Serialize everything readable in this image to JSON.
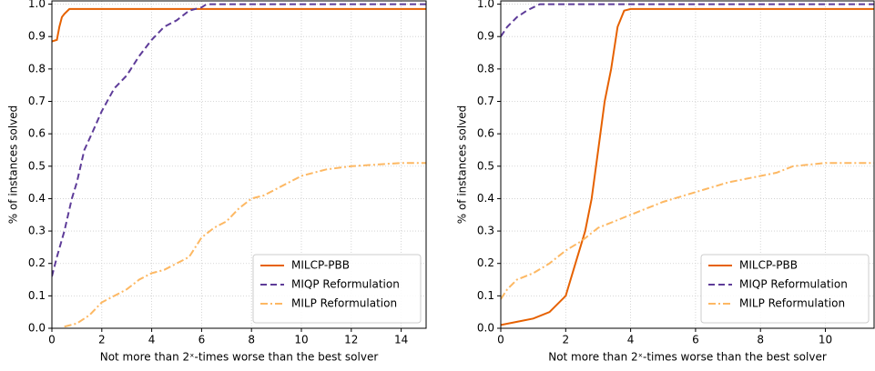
{
  "chart_data": [
    {
      "type": "line",
      "xlabel": "Not more than 2ˣ-times worse than the best solver",
      "ylabel": "% of instances solved",
      "xlim": [
        0,
        15
      ],
      "ylim": [
        0,
        1.01
      ],
      "xticks": [
        0,
        2,
        4,
        6,
        8,
        10,
        12,
        14
      ],
      "yticks": [
        {
          "value": 0,
          "label": "0.0"
        },
        0.1,
        0.2,
        0.3,
        0.4,
        0.5,
        0.6,
        0.7,
        0.8,
        0.9,
        {
          "value": 1,
          "label": "1.0"
        }
      ],
      "grid": true,
      "legend": "lower right",
      "series": [
        {
          "name": "MILCP-PBB",
          "color": "#e66101",
          "linestyle": "solid",
          "x": [
            0,
            0.2,
            0.3,
            0.4,
            0.5,
            0.7,
            15
          ],
          "values": [
            0.885,
            0.89,
            0.93,
            0.96,
            0.97,
            0.985,
            0.985
          ]
        },
        {
          "name": "MIQP Reformulation",
          "color": "#5e3c99",
          "linestyle": "dashed",
          "x": [
            0,
            0.2,
            0.5,
            0.8,
            1.0,
            1.3,
            1.6,
            2.0,
            2.5,
            3.0,
            3.5,
            4.0,
            4.5,
            5.0,
            5.5,
            6.0,
            6.2,
            15
          ],
          "values": [
            0.16,
            0.22,
            0.3,
            0.4,
            0.45,
            0.55,
            0.6,
            0.67,
            0.74,
            0.78,
            0.84,
            0.89,
            0.93,
            0.95,
            0.98,
            0.99,
            1.0,
            1.0
          ]
        },
        {
          "name": "MILP Reformulation",
          "color": "#fdb863",
          "linestyle": "dashdot",
          "x": [
            0.5,
            1,
            1.5,
            2,
            2.5,
            3,
            3.5,
            4,
            4.5,
            5,
            5.5,
            6,
            6.5,
            7,
            7.5,
            8,
            8.5,
            9,
            9.5,
            10,
            11,
            12,
            13,
            14,
            15
          ],
          "values": [
            0.005,
            0.015,
            0.04,
            0.08,
            0.1,
            0.12,
            0.15,
            0.17,
            0.18,
            0.2,
            0.22,
            0.28,
            0.31,
            0.33,
            0.37,
            0.4,
            0.41,
            0.43,
            0.45,
            0.47,
            0.49,
            0.5,
            0.505,
            0.51,
            0.51
          ]
        }
      ]
    },
    {
      "type": "line",
      "xlabel": "Not more than 2ˣ-times worse than the best solver",
      "ylabel": "% of instances solved",
      "xlim": [
        0,
        11.5
      ],
      "ylim": [
        0,
        1.01
      ],
      "xticks": [
        0,
        2,
        4,
        6,
        8,
        10
      ],
      "yticks": [
        {
          "value": 0,
          "label": "0.0"
        },
        0.1,
        0.2,
        0.3,
        0.4,
        0.5,
        0.6,
        0.7,
        0.8,
        0.9,
        {
          "value": 1,
          "label": "1.0"
        }
      ],
      "grid": true,
      "legend": "lower right",
      "series": [
        {
          "name": "MILCP-PBB",
          "color": "#e66101",
          "linestyle": "solid",
          "x": [
            0,
            0.5,
            1,
            1.5,
            2,
            2.3,
            2.6,
            2.8,
            3.0,
            3.2,
            3.4,
            3.6,
            3.8,
            4.0,
            11.5
          ],
          "values": [
            0.01,
            0.02,
            0.03,
            0.05,
            0.1,
            0.2,
            0.3,
            0.4,
            0.55,
            0.7,
            0.8,
            0.93,
            0.98,
            0.985,
            0.985
          ]
        },
        {
          "name": "MIQP Reformulation",
          "color": "#5e3c99",
          "linestyle": "dashed",
          "x": [
            0,
            0.2,
            0.5,
            0.8,
            1.2,
            11.5
          ],
          "values": [
            0.9,
            0.93,
            0.96,
            0.98,
            1.0,
            1.0
          ]
        },
        {
          "name": "MILP Reformulation",
          "color": "#fdb863",
          "linestyle": "dashdot",
          "x": [
            0,
            0.2,
            0.5,
            1,
            1.5,
            2,
            2.5,
            3,
            3.5,
            4,
            5,
            6,
            7,
            8,
            8.5,
            9,
            10,
            11.5
          ],
          "values": [
            0.09,
            0.12,
            0.15,
            0.17,
            0.2,
            0.24,
            0.27,
            0.31,
            0.33,
            0.35,
            0.39,
            0.42,
            0.45,
            0.47,
            0.48,
            0.5,
            0.51,
            0.51
          ]
        }
      ]
    }
  ]
}
